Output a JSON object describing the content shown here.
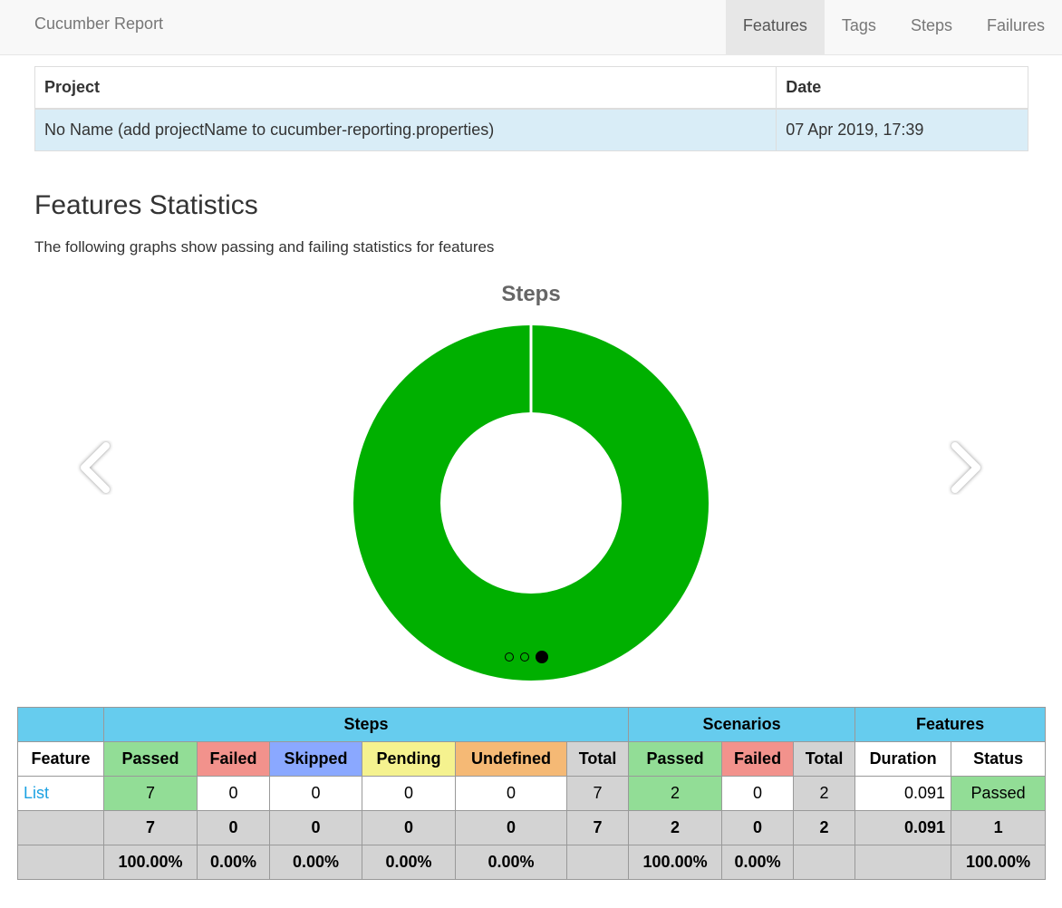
{
  "navbar": {
    "brand": "Cucumber Report",
    "items": [
      {
        "label": "Features",
        "active": true
      },
      {
        "label": "Tags"
      },
      {
        "label": "Steps"
      },
      {
        "label": "Failures"
      }
    ]
  },
  "project_table": {
    "headers": [
      "Project",
      "Date"
    ],
    "row": [
      "No Name (add projectName to cucumber-reporting.properties)",
      "07 Apr 2019, 17:39"
    ]
  },
  "stats_section": {
    "title": "Features Statistics",
    "description": "The following graphs show passing and failing statistics for features"
  },
  "chart_data": {
    "type": "pie",
    "title": "Steps",
    "donut": true,
    "labels": [
      "Passed",
      "Failed",
      "Skipped",
      "Pending",
      "Undefined"
    ],
    "values": [
      7,
      0,
      0,
      0,
      0
    ],
    "colors": [
      "#00b000",
      "#f2928c",
      "#8aa8ff",
      "#f5f28f",
      "#f5b975"
    ]
  },
  "carousel": {
    "slide_count": 3,
    "active_index": 2,
    "prev_icon": "chevron-left-icon",
    "next_icon": "chevron-right-icon"
  },
  "stats_table": {
    "groups": [
      "Steps",
      "Scenarios",
      "Features"
    ],
    "headers": [
      "Feature",
      "Passed",
      "Failed",
      "Skipped",
      "Pending",
      "Undefined",
      "Total",
      "Passed",
      "Failed",
      "Total",
      "Duration",
      "Status"
    ],
    "row": {
      "feature": "List",
      "values": [
        "7",
        "0",
        "0",
        "0",
        "0",
        "7",
        "2",
        "0",
        "2",
        "0.091",
        "Passed"
      ]
    },
    "totals": [
      "",
      "7",
      "0",
      "0",
      "0",
      "0",
      "7",
      "2",
      "0",
      "2",
      "0.091",
      "1"
    ],
    "percentages": [
      "",
      "100.00%",
      "0.00%",
      "0.00%",
      "0.00%",
      "0.00%",
      "",
      "100.00%",
      "0.00%",
      "",
      "",
      "100.00%"
    ]
  },
  "colors": {
    "passed": "#92dd96",
    "failed": "#f2928c",
    "skipped": "#8aa8ff",
    "pending": "#f5f28f",
    "undefined": "#f5b975",
    "total": "#d3d3d3",
    "group_header": "#66ccee",
    "chart_passed": "#00b000"
  }
}
